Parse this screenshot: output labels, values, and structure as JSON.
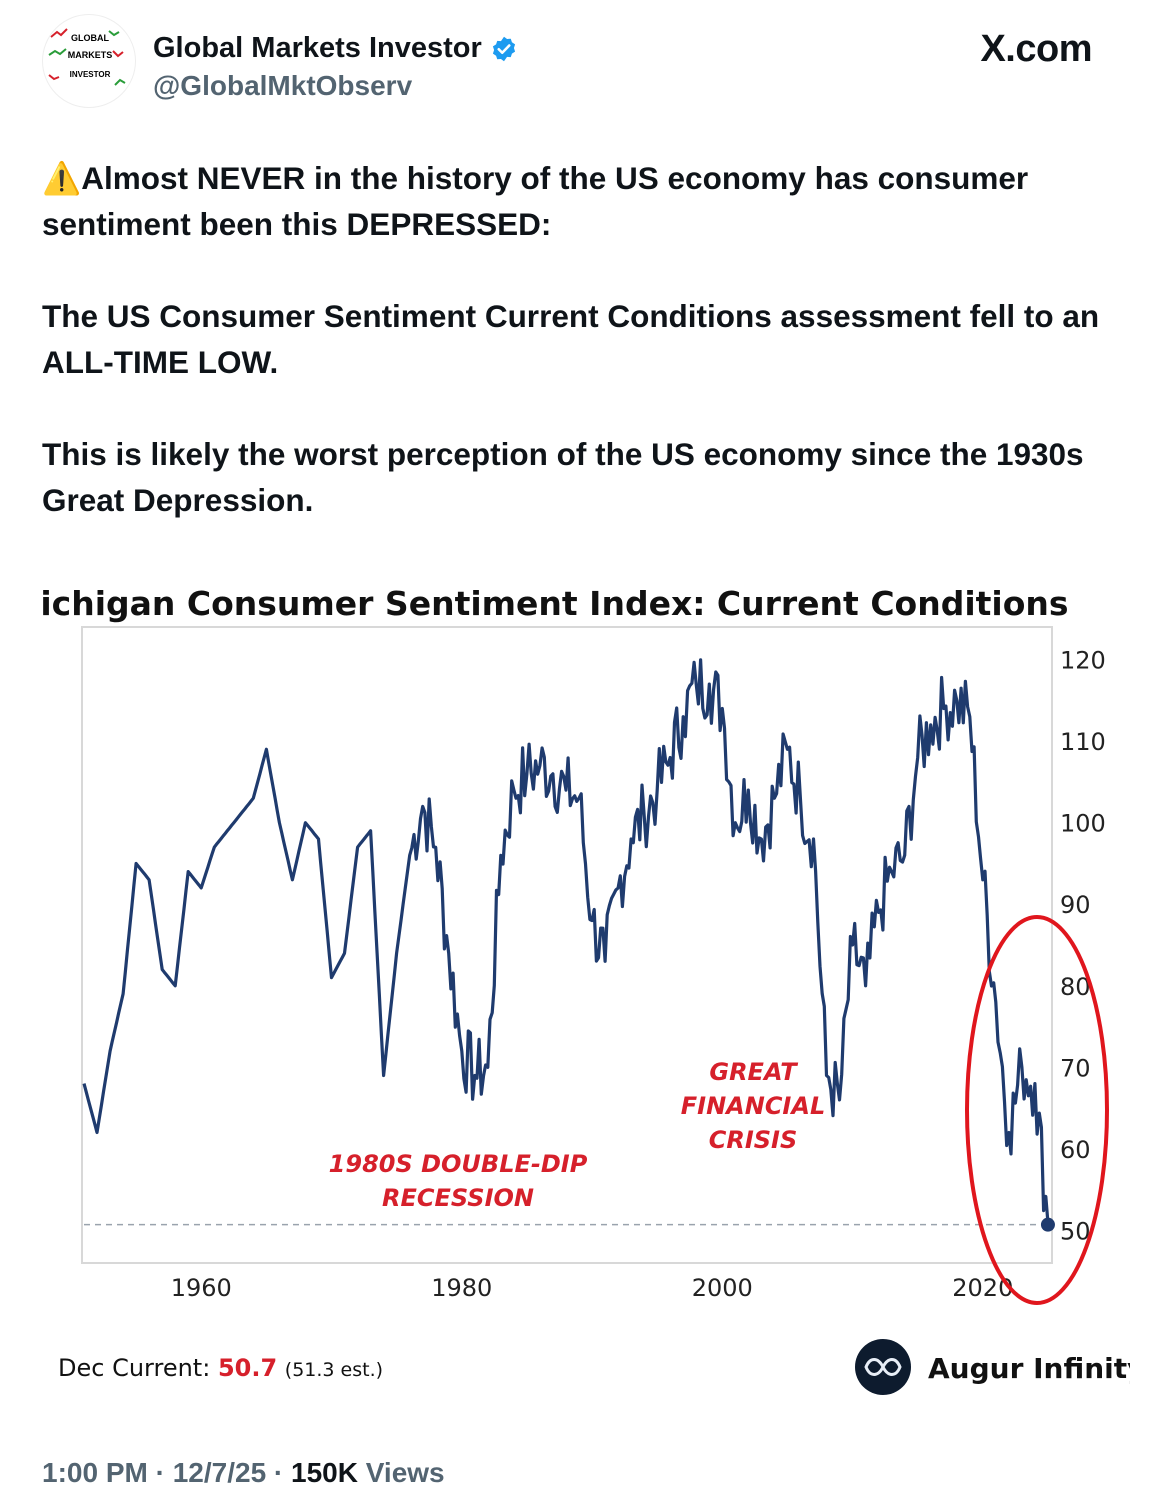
{
  "post": {
    "author_name": "Global Markets Investor",
    "author_handle": "@GlobalMktObserv",
    "site": "X.com",
    "avatar_lines": [
      "GLOBAL",
      "MARKETS",
      "INVESTOR"
    ],
    "paragraphs": [
      "Almost NEVER in the history of the US economy has consumer sentiment been this DEPRESSED:",
      "The US Consumer Sentiment Current Conditions assessment fell to an ALL-TIME LOW.",
      "This is likely the worst perception of the US economy since the 1930s Great Depression."
    ],
    "warning_emoji": "⚠️",
    "time": "1:00 PM",
    "date": "12/7/25",
    "views_count": "150K",
    "views_label": "Views",
    "separator": "·"
  },
  "chart_data": {
    "type": "line",
    "title": "Michigan Consumer Sentiment Index: Current Conditions",
    "x": [
      1951,
      1952,
      1953,
      1954,
      1955,
      1956,
      1957,
      1958,
      1959,
      1960,
      1961,
      1962,
      1963,
      1964,
      1965,
      1966,
      1967,
      1968,
      1969,
      1970,
      1971,
      1972,
      1973,
      1974,
      1975,
      1976,
      1977,
      1978,
      1979,
      1980,
      1981,
      1982,
      1983,
      1984,
      1985,
      1986,
      1987,
      1988,
      1989,
      1990,
      1991,
      1992,
      1993,
      1994,
      1995,
      1996,
      1997,
      1998,
      1999,
      2000,
      2001,
      2002,
      2003,
      2004,
      2005,
      2006,
      2007,
      2008,
      2009,
      2010,
      2011,
      2012,
      2013,
      2014,
      2015,
      2016,
      2017,
      2018,
      2019,
      2020,
      2021,
      2022,
      2023,
      2024,
      2025
    ],
    "y": [
      68,
      62,
      72,
      79,
      95,
      93,
      82,
      80,
      94,
      92,
      97,
      99,
      101,
      103,
      109,
      100,
      93,
      100,
      98,
      81,
      84,
      97,
      99,
      69,
      84,
      96,
      102,
      97,
      84,
      72,
      69,
      70,
      96,
      104,
      106,
      107,
      106,
      104,
      103,
      88,
      83,
      92,
      98,
      101,
      104,
      108,
      113,
      117,
      117,
      114,
      100,
      104,
      98,
      103,
      109,
      103,
      98,
      69,
      66,
      85,
      80,
      89,
      94,
      96,
      108,
      112,
      114,
      115,
      113,
      93,
      78,
      62,
      70,
      68,
      51
    ],
    "ylim": [
      46,
      124
    ],
    "xlim": [
      1951,
      2027
    ],
    "yticks": [
      50,
      60,
      70,
      80,
      90,
      100,
      110,
      120
    ],
    "xticks": [
      1960,
      1980,
      2000,
      2020
    ],
    "reference_line": 50.7,
    "current_point": {
      "x": 2025,
      "y": 50.7
    },
    "annotations": [
      {
        "text_lines": [
          "1980S DOUBLE-DIP",
          "RECESSION"
        ]
      },
      {
        "text_lines": [
          "GREAT",
          "FINANCIAL",
          "CRISIS"
        ]
      }
    ],
    "footer_label": "Dec Current:",
    "footer_value": "50.7",
    "footer_est": "(51.3 est.)",
    "source": "Augur Infinity",
    "line_color": "#1f3b6e",
    "annotation_color": "#d6202b",
    "circle_color": "#e0161d"
  }
}
